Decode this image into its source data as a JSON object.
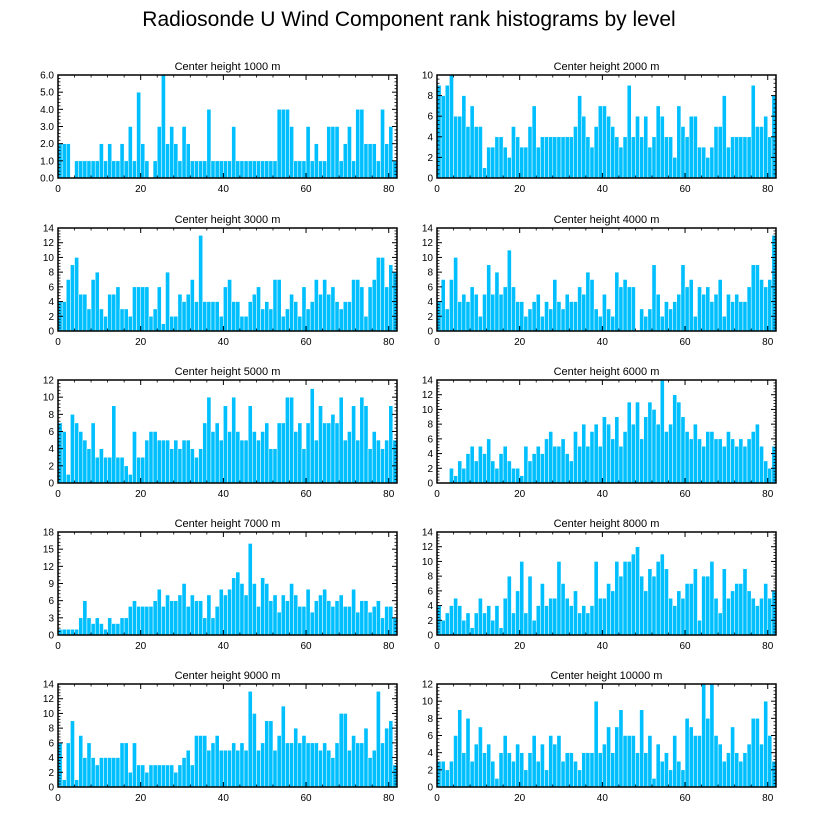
{
  "figure_title": "Radiosonde U Wind Component rank histograms by level",
  "bar_color": "#00bfff",
  "chart_data": [
    {
      "type": "bar",
      "title": "Center height 1000 m",
      "xlim": [
        0,
        82
      ],
      "ylim": [
        0,
        6
      ],
      "yticks": [
        0,
        1,
        2,
        3,
        4,
        5,
        6
      ],
      "ytick_labels": [
        "0.0",
        "1.0",
        "2.0",
        "3.0",
        "4.0",
        "5.0",
        "6.0"
      ],
      "xticks": [
        0,
        20,
        40,
        60,
        80
      ],
      "xtick_labels": [
        "0",
        "20",
        "40",
        "60",
        "80"
      ],
      "values": [
        2,
        2,
        2,
        0,
        1,
        1,
        1,
        1,
        1,
        1,
        2,
        1,
        2,
        1,
        1,
        2,
        1,
        3,
        1,
        5,
        2,
        1,
        0,
        1,
        3,
        6,
        2,
        3,
        2,
        1,
        3,
        2,
        1,
        1,
        1,
        1,
        4,
        1,
        1,
        1,
        1,
        1,
        3,
        1,
        1,
        1,
        1,
        1,
        1,
        1,
        1,
        1,
        1,
        4,
        4,
        4,
        3,
        1,
        1,
        1,
        3,
        1,
        2,
        1,
        1,
        3,
        3,
        3,
        1,
        2,
        3,
        1,
        4,
        4,
        2,
        2,
        2,
        1,
        4,
        2,
        3,
        1
      ]
    },
    {
      "type": "bar",
      "title": "Center height 2000 m",
      "xlim": [
        0,
        82
      ],
      "ylim": [
        0,
        10
      ],
      "yticks": [
        0,
        2,
        4,
        6,
        8,
        10
      ],
      "ytick_labels": [
        "0",
        "2",
        "4",
        "6",
        "8",
        "10"
      ],
      "xticks": [
        0,
        20,
        40,
        60,
        80
      ],
      "xtick_labels": [
        "0",
        "20",
        "40",
        "60",
        "80"
      ],
      "values": [
        9,
        8,
        9,
        10,
        6,
        6,
        8,
        5,
        7,
        5,
        5,
        1,
        3,
        3,
        4,
        4,
        3,
        2,
        5,
        4,
        3,
        3,
        5,
        7,
        3,
        4,
        4,
        4,
        4,
        4,
        4,
        4,
        4,
        5,
        8,
        6,
        4,
        3,
        5,
        7,
        7,
        6,
        5,
        4,
        3,
        4,
        9,
        4,
        6,
        4,
        6,
        3,
        4,
        7,
        6,
        4,
        4,
        2,
        7,
        5,
        4,
        6,
        6,
        3,
        3,
        2,
        3,
        5,
        5,
        8,
        3,
        4,
        4,
        4,
        4,
        4,
        9,
        5,
        5,
        6,
        4,
        8
      ]
    },
    {
      "type": "bar",
      "title": "Center height 3000 m",
      "xlim": [
        0,
        82
      ],
      "ylim": [
        0,
        14
      ],
      "yticks": [
        0,
        2,
        4,
        6,
        8,
        10,
        12,
        14
      ],
      "ytick_labels": [
        "0",
        "2",
        "4",
        "6",
        "8",
        "10",
        "12",
        "14"
      ],
      "xticks": [
        0,
        20,
        40,
        60,
        80
      ],
      "xtick_labels": [
        "0",
        "20",
        "40",
        "60",
        "80"
      ],
      "values": [
        4,
        4,
        7,
        9,
        10,
        5,
        5,
        3,
        7,
        8,
        3,
        2,
        5,
        5,
        6,
        3,
        3,
        2,
        6,
        6,
        6,
        6,
        2,
        3,
        6,
        1,
        8,
        2,
        2,
        5,
        4,
        5,
        7,
        4,
        13,
        4,
        4,
        4,
        4,
        2,
        6,
        7,
        4,
        4,
        2,
        2,
        4,
        5,
        6,
        3,
        4,
        3,
        7,
        7,
        2,
        3,
        5,
        4,
        2,
        6,
        3,
        4,
        7,
        5,
        7,
        5,
        6,
        4,
        3,
        4,
        4,
        7,
        7,
        6,
        2,
        6,
        7,
        10,
        10,
        6,
        9,
        8
      ]
    },
    {
      "type": "bar",
      "title": "Center height 4000 m",
      "xlim": [
        0,
        82
      ],
      "ylim": [
        0,
        14
      ],
      "yticks": [
        0,
        2,
        4,
        6,
        8,
        10,
        12,
        14
      ],
      "ytick_labels": [
        "0",
        "2",
        "4",
        "6",
        "8",
        "10",
        "12",
        "14"
      ],
      "xticks": [
        0,
        20,
        40,
        60,
        80
      ],
      "xtick_labels": [
        "0",
        "20",
        "40",
        "60",
        "80"
      ],
      "values": [
        4,
        7,
        3,
        7,
        10,
        4,
        5,
        4,
        6,
        5,
        2,
        5,
        9,
        5,
        8,
        5,
        6,
        11,
        6,
        4,
        4,
        2,
        3,
        4,
        5,
        2,
        4,
        3,
        7,
        4,
        3,
        5,
        4,
        4,
        6,
        5,
        8,
        7,
        3,
        2,
        5,
        3,
        2,
        8,
        6,
        7,
        6,
        6,
        0,
        3,
        2,
        3,
        9,
        5,
        2,
        4,
        3,
        4,
        5,
        9,
        6,
        7,
        2,
        6,
        5,
        6,
        4,
        5,
        7,
        2,
        5,
        4,
        5,
        4,
        4,
        6,
        9,
        9,
        7,
        6,
        7,
        13
      ]
    },
    {
      "type": "bar",
      "title": "Center height 5000 m",
      "xlim": [
        0,
        82
      ],
      "ylim": [
        0,
        12
      ],
      "yticks": [
        0,
        2,
        4,
        6,
        8,
        10,
        12
      ],
      "ytick_labels": [
        "0",
        "2",
        "4",
        "6",
        "8",
        "10",
        "12"
      ],
      "xticks": [
        0,
        20,
        40,
        60,
        80
      ],
      "xtick_labels": [
        "0",
        "20",
        "40",
        "60",
        "80"
      ],
      "values": [
        7,
        6,
        1,
        8,
        7,
        6,
        5,
        4,
        7,
        3,
        4,
        3,
        3,
        9,
        3,
        3,
        2,
        1,
        6,
        3,
        3,
        5,
        6,
        6,
        5,
        5,
        5,
        4,
        5,
        4,
        5,
        5,
        4,
        3,
        4,
        7,
        10,
        6,
        7,
        5,
        9,
        6,
        10,
        6,
        5,
        5,
        9,
        6,
        5,
        6,
        7,
        4,
        4,
        7,
        7,
        10,
        10,
        6,
        7,
        4,
        7,
        11,
        5,
        9,
        7,
        7,
        8,
        7,
        10,
        5,
        6,
        9,
        5,
        10,
        9,
        4,
        6,
        5,
        4,
        5,
        9,
        5
      ]
    },
    {
      "type": "bar",
      "title": "Center height 6000 m",
      "xlim": [
        0,
        82
      ],
      "ylim": [
        0,
        14
      ],
      "yticks": [
        0,
        2,
        4,
        6,
        8,
        10,
        12,
        14
      ],
      "ytick_labels": [
        "0",
        "2",
        "4",
        "6",
        "8",
        "10",
        "12",
        "14"
      ],
      "xticks": [
        0,
        20,
        40,
        60,
        80
      ],
      "xtick_labels": [
        "0",
        "20",
        "40",
        "60",
        "80"
      ],
      "values": [
        0,
        0,
        0,
        2,
        1,
        3,
        2,
        4,
        5,
        3,
        5,
        4,
        6,
        3,
        2,
        4,
        5,
        3,
        2,
        2,
        1,
        5,
        3,
        4,
        5,
        4,
        6,
        7,
        5,
        5,
        6,
        4,
        3,
        7,
        5,
        8,
        5,
        7,
        8,
        5,
        9,
        8,
        6,
        9,
        5,
        7,
        11,
        8,
        11,
        6,
        9,
        11,
        10,
        8,
        14,
        7,
        8,
        12,
        11,
        9,
        7,
        6,
        8,
        6,
        5,
        7,
        7,
        6,
        6,
        5,
        7,
        6,
        5,
        6,
        5,
        6,
        7,
        8,
        5,
        3,
        2,
        5
      ]
    },
    {
      "type": "bar",
      "title": "Center height 7000 m",
      "xlim": [
        0,
        82
      ],
      "ylim": [
        0,
        18
      ],
      "yticks": [
        0,
        3,
        6,
        9,
        12,
        15,
        18
      ],
      "ytick_labels": [
        "0",
        "3",
        "6",
        "9",
        "12",
        "15",
        "18"
      ],
      "xticks": [
        0,
        20,
        40,
        60,
        80
      ],
      "xtick_labels": [
        "0",
        "20",
        "40",
        "60",
        "80"
      ],
      "values": [
        1,
        1,
        1,
        1,
        1,
        3,
        6,
        3,
        2,
        3,
        2,
        1,
        3,
        2,
        2,
        3,
        3,
        5,
        6,
        5,
        5,
        5,
        5,
        6,
        8,
        5,
        7,
        6,
        6,
        7,
        9,
        5,
        7,
        6,
        6,
        3,
        7,
        3,
        5,
        8,
        7,
        8,
        10,
        11,
        9,
        7,
        16,
        9,
        5,
        10,
        9,
        6,
        7,
        4,
        7,
        6,
        9,
        7,
        5,
        5,
        8,
        4,
        6,
        7,
        8,
        6,
        5,
        6,
        7,
        5,
        5,
        8,
        4,
        6,
        6,
        4,
        5,
        6,
        3,
        5,
        5,
        3
      ]
    },
    {
      "type": "bar",
      "title": "Center height 8000 m",
      "xlim": [
        0,
        82
      ],
      "ylim": [
        0,
        14
      ],
      "yticks": [
        0,
        2,
        4,
        6,
        8,
        10,
        12,
        14
      ],
      "ytick_labels": [
        "0",
        "2",
        "4",
        "6",
        "8",
        "10",
        "12",
        "14"
      ],
      "xticks": [
        0,
        20,
        40,
        60,
        80
      ],
      "xtick_labels": [
        "0",
        "20",
        "40",
        "60",
        "80"
      ],
      "values": [
        4,
        2,
        3,
        4,
        5,
        4,
        2,
        3,
        1,
        3,
        5,
        3,
        4,
        2,
        4,
        1,
        5,
        8,
        3,
        6,
        10,
        3,
        8,
        2,
        4,
        7,
        4,
        5,
        5,
        10,
        7,
        5,
        4,
        6,
        3,
        4,
        3,
        4,
        10,
        5,
        5,
        7,
        6,
        10,
        8,
        10,
        10,
        11,
        12,
        8,
        6,
        9,
        8,
        10,
        11,
        9,
        5,
        4,
        6,
        5,
        7,
        7,
        9,
        2,
        8,
        8,
        10,
        5,
        3,
        9,
        5,
        6,
        7,
        7,
        9,
        6,
        5,
        4,
        5,
        7,
        5,
        6
      ]
    },
    {
      "type": "bar",
      "title": "Center height 9000 m",
      "xlim": [
        0,
        82
      ],
      "ylim": [
        0,
        14
      ],
      "yticks": [
        0,
        2,
        4,
        6,
        8,
        10,
        12,
        14
      ],
      "ytick_labels": [
        "0",
        "2",
        "4",
        "6",
        "8",
        "10",
        "12",
        "14"
      ],
      "xticks": [
        0,
        20,
        40,
        60,
        80
      ],
      "xtick_labels": [
        "0",
        "20",
        "40",
        "60",
        "80"
      ],
      "values": [
        6,
        1,
        6,
        9,
        1,
        7,
        4,
        6,
        4,
        3,
        4,
        4,
        4,
        4,
        4,
        6,
        6,
        2,
        6,
        3,
        3,
        2,
        3,
        3,
        3,
        3,
        3,
        3,
        2,
        3,
        4,
        5,
        3,
        7,
        7,
        7,
        5,
        6,
        7,
        5,
        5,
        5,
        6,
        5,
        6,
        5,
        13,
        10,
        5,
        6,
        9,
        9,
        5,
        7,
        11,
        6,
        6,
        8,
        6,
        7,
        6,
        6,
        6,
        5,
        6,
        5,
        4,
        6,
        10,
        10,
        5,
        7,
        6,
        6,
        8,
        4,
        5,
        13,
        6,
        8,
        9,
        3
      ]
    },
    {
      "type": "bar",
      "title": "Center height 10000 m",
      "xlim": [
        0,
        82
      ],
      "ylim": [
        0,
        12
      ],
      "yticks": [
        0,
        2,
        4,
        6,
        8,
        10,
        12
      ],
      "ytick_labels": [
        "0",
        "2",
        "4",
        "6",
        "8",
        "10",
        "12"
      ],
      "xticks": [
        0,
        20,
        40,
        60,
        80
      ],
      "xtick_labels": [
        "0",
        "20",
        "40",
        "60",
        "80"
      ],
      "values": [
        3,
        3,
        2,
        3,
        6,
        9,
        4,
        8,
        3,
        5,
        7,
        4,
        5,
        3,
        1,
        4,
        6,
        4,
        3,
        5,
        4,
        2,
        4,
        6,
        3,
        5,
        2,
        6,
        5,
        6,
        3,
        4,
        4,
        3,
        2,
        4,
        4,
        4,
        10,
        4,
        5,
        7,
        4,
        7,
        9,
        6,
        6,
        6,
        4,
        9,
        4,
        6,
        1,
        5,
        3,
        4,
        2,
        6,
        3,
        2,
        8,
        7,
        6,
        6,
        12,
        8,
        12,
        6,
        5,
        3,
        4,
        7,
        4,
        3,
        4,
        5,
        8,
        8,
        5,
        10,
        6,
        3
      ]
    }
  ]
}
